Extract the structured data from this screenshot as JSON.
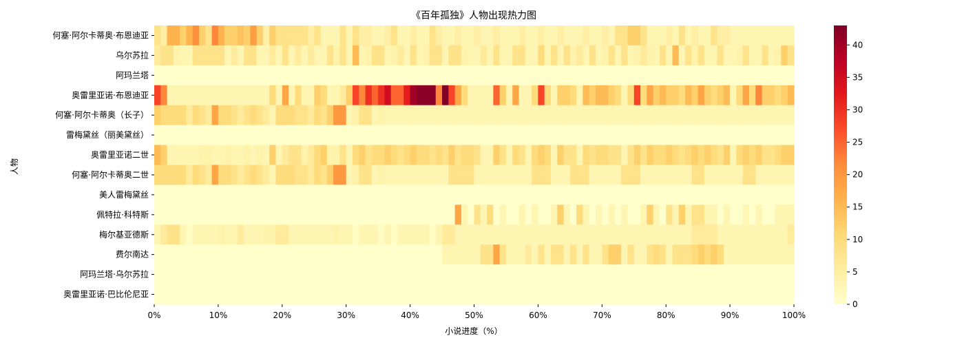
{
  "chart_data": {
    "type": "heatmap",
    "title": "《百年孤独》人物出现热力图",
    "xlabel": "小说进度（%）",
    "ylabel": "人物",
    "x_ticks": [
      "0%",
      "10%",
      "20%",
      "30%",
      "40%",
      "50%",
      "60%",
      "70%",
      "80%",
      "90%",
      "100%"
    ],
    "rows": [
      "何塞·阿尔卡蒂奥·布恩迪亚",
      "乌尔苏拉",
      "阿玛兰塔",
      "奥雷里亚诺·布恩迪亚",
      "何塞·阿尔卡蒂奥（长子）",
      "雷梅黛丝（丽美黛丝）",
      "奥雷里亚诺二世",
      "何塞·阿尔卡蒂奥二世",
      "美人雷梅黛丝",
      "佩特拉·科特斯",
      "梅尔基亚德斯",
      "费尔南达",
      "阿玛兰塔·乌尔苏拉",
      "奥雷里亚诺·巴比伦尼亚"
    ],
    "colorbar": {
      "min": 0,
      "max": 43,
      "ticks": [
        0,
        5,
        10,
        15,
        20,
        25,
        30,
        35,
        40
      ]
    },
    "bins": 100,
    "values": [
      [
        8,
        5,
        16,
        16,
        12,
        16,
        21,
        12,
        8,
        22,
        16,
        12,
        12,
        14,
        12,
        19,
        12,
        5,
        12,
        8,
        8,
        8,
        8,
        8,
        5,
        8,
        3,
        3,
        3,
        8,
        3,
        8,
        5,
        5,
        3,
        3,
        5,
        8,
        3,
        3,
        5,
        3,
        3,
        8,
        5,
        3,
        3,
        5,
        3,
        3,
        5,
        3,
        3,
        5,
        3,
        3,
        3,
        5,
        3,
        3,
        5,
        3,
        3,
        5,
        3,
        3,
        3,
        5,
        3,
        3,
        5,
        3,
        8,
        8,
        12,
        12,
        8,
        3,
        3,
        3,
        5,
        3,
        8,
        3,
        5,
        3,
        3,
        8,
        5,
        5,
        3,
        3,
        3,
        3,
        3,
        3,
        3,
        3,
        3,
        3
      ],
      [
        6,
        8,
        8,
        4,
        3,
        3,
        8,
        8,
        8,
        8,
        8,
        3,
        6,
        3,
        8,
        8,
        3,
        3,
        6,
        3,
        8,
        3,
        6,
        3,
        6,
        3,
        3,
        8,
        4,
        8,
        3,
        15,
        3,
        4,
        8,
        8,
        3,
        4,
        6,
        3,
        8,
        3,
        4,
        8,
        8,
        3,
        8,
        8,
        4,
        3,
        3,
        6,
        3,
        8,
        3,
        3,
        8,
        8,
        3,
        3,
        10,
        3,
        8,
        3,
        8,
        4,
        6,
        3,
        8,
        3,
        4,
        8,
        3,
        8,
        3,
        4,
        6,
        4,
        3,
        8,
        3,
        15,
        3,
        8,
        4,
        8,
        3,
        3,
        8,
        3,
        3,
        4,
        8,
        3,
        3,
        8,
        3,
        4,
        12,
        8
      ],
      [
        0,
        0,
        0,
        0,
        0,
        0,
        0,
        0,
        0,
        0,
        0,
        0,
        0,
        0,
        0,
        0,
        0,
        0,
        0,
        0,
        0,
        0,
        0,
        0,
        0,
        0,
        0,
        0,
        0,
        0,
        0,
        0,
        0,
        0,
        0,
        0,
        0,
        0,
        0,
        0,
        0,
        0,
        0,
        0,
        0,
        0,
        0,
        0,
        0,
        0,
        0,
        0,
        0,
        0,
        0,
        0,
        0,
        0,
        0,
        0,
        0,
        0,
        0,
        0,
        0,
        0,
        0,
        0,
        0,
        0,
        0,
        0,
        0,
        0,
        0,
        0,
        0,
        0,
        0,
        0,
        0,
        0,
        0,
        0,
        0,
        0,
        0,
        0,
        0,
        0,
        0,
        0,
        0,
        0,
        0,
        0,
        0,
        0,
        0,
        0
      ],
      [
        28,
        22,
        3,
        3,
        3,
        3,
        3,
        3,
        3,
        3,
        3,
        3,
        3,
        3,
        3,
        3,
        3,
        3,
        10,
        3,
        18,
        3,
        10,
        3,
        3,
        12,
        10,
        3,
        3,
        6,
        12,
        28,
        22,
        30,
        25,
        30,
        35,
        25,
        25,
        32,
        40,
        42,
        42,
        42,
        22,
        43,
        28,
        18,
        10,
        3,
        3,
        3,
        3,
        25,
        12,
        3,
        18,
        3,
        3,
        10,
        28,
        10,
        3,
        12,
        12,
        10,
        3,
        15,
        12,
        15,
        15,
        12,
        10,
        3,
        10,
        28,
        10,
        18,
        12,
        15,
        12,
        12,
        10,
        15,
        12,
        18,
        12,
        10,
        12,
        15,
        3,
        10,
        18,
        10,
        22,
        12,
        12,
        10,
        12,
        15
      ],
      [
        12,
        10,
        10,
        10,
        10,
        6,
        10,
        8,
        6,
        18,
        10,
        10,
        8,
        6,
        8,
        10,
        8,
        6,
        3,
        10,
        10,
        10,
        8,
        8,
        6,
        10,
        8,
        12,
        20,
        20,
        3,
        4,
        8,
        8,
        3,
        4,
        3,
        3,
        3,
        3,
        3,
        3,
        3,
        3,
        3,
        3,
        3,
        3,
        3,
        3,
        3,
        3,
        3,
        3,
        3,
        3,
        3,
        3,
        3,
        3,
        3,
        3,
        3,
        3,
        3,
        3,
        3,
        3,
        3,
        3,
        3,
        3,
        3,
        3,
        3,
        3,
        3,
        3,
        3,
        3,
        3,
        3,
        3,
        3,
        3,
        3,
        3,
        3,
        3,
        3,
        3,
        3,
        3,
        3,
        3,
        3,
        3,
        3,
        3,
        3
      ],
      [
        0,
        0,
        0,
        0,
        0,
        0,
        0,
        0,
        0,
        0,
        0,
        0,
        0,
        0,
        0,
        0,
        0,
        0,
        0,
        0,
        0,
        0,
        0,
        0,
        0,
        0,
        0,
        0,
        0,
        0,
        0,
        0,
        0,
        0,
        0,
        0,
        0,
        0,
        0,
        0,
        0,
        0,
        0,
        0,
        0,
        0,
        0,
        0,
        0,
        0,
        0,
        0,
        0,
        0,
        0,
        0,
        0,
        0,
        0,
        0,
        0,
        0,
        0,
        0,
        0,
        0,
        0,
        0,
        0,
        0,
        0,
        0,
        0,
        0,
        0,
        0,
        0,
        0,
        0,
        0,
        0,
        0,
        0,
        0,
        0,
        0,
        0,
        0,
        0,
        0,
        0,
        0,
        0,
        0,
        0,
        0,
        0,
        0,
        0,
        0
      ],
      [
        15,
        12,
        3,
        3,
        3,
        3,
        3,
        4,
        4,
        3,
        3,
        4,
        3,
        3,
        4,
        3,
        4,
        3,
        12,
        3,
        6,
        8,
        8,
        4,
        6,
        10,
        12,
        4,
        4,
        8,
        3,
        10,
        12,
        8,
        10,
        10,
        12,
        10,
        8,
        10,
        12,
        10,
        10,
        8,
        10,
        8,
        12,
        8,
        10,
        10,
        8,
        3,
        3,
        12,
        8,
        3,
        10,
        8,
        3,
        10,
        12,
        10,
        3,
        12,
        8,
        8,
        3,
        10,
        8,
        10,
        10,
        8,
        8,
        3,
        8,
        12,
        8,
        12,
        10,
        10,
        12,
        10,
        8,
        10,
        12,
        10,
        12,
        10,
        8,
        12,
        3,
        10,
        12,
        10,
        12,
        8,
        8,
        10,
        12,
        12
      ],
      [
        10,
        10,
        10,
        10,
        10,
        6,
        10,
        8,
        6,
        18,
        10,
        10,
        8,
        6,
        8,
        10,
        8,
        6,
        3,
        10,
        10,
        10,
        8,
        8,
        6,
        10,
        8,
        12,
        20,
        20,
        3,
        4,
        8,
        8,
        3,
        4,
        3,
        3,
        3,
        3,
        3,
        3,
        3,
        3,
        3,
        3,
        8,
        8,
        8,
        8,
        3,
        3,
        3,
        3,
        3,
        3,
        3,
        3,
        3,
        8,
        8,
        8,
        3,
        3,
        3,
        8,
        8,
        8,
        3,
        3,
        3,
        3,
        3,
        8,
        8,
        8,
        3,
        3,
        3,
        3,
        3,
        3,
        3,
        3,
        8,
        8,
        3,
        3,
        3,
        3,
        3,
        3,
        8,
        8,
        3,
        3,
        3,
        3,
        3,
        3
      ],
      [
        0,
        0,
        0,
        0,
        0,
        0,
        0,
        0,
        0,
        0,
        0,
        0,
        0,
        0,
        0,
        0,
        0,
        0,
        0,
        0,
        0,
        0,
        0,
        0,
        0,
        0,
        0,
        0,
        0,
        0,
        0,
        0,
        0,
        0,
        0,
        0,
        0,
        0,
        0,
        0,
        0,
        0,
        0,
        0,
        0,
        0,
        0,
        0,
        0,
        0,
        0,
        0,
        0,
        0,
        0,
        0,
        0,
        0,
        0,
        0,
        0,
        0,
        0,
        0,
        0,
        0,
        0,
        0,
        0,
        0,
        0,
        0,
        0,
        0,
        0,
        0,
        0,
        0,
        0,
        0,
        0,
        0,
        0,
        0,
        0,
        0,
        0,
        0,
        0,
        0,
        0,
        0,
        0,
        0,
        0,
        0,
        0,
        0,
        0,
        0
      ],
      [
        0,
        0,
        0,
        0,
        0,
        0,
        0,
        0,
        0,
        0,
        0,
        0,
        0,
        0,
        0,
        0,
        0,
        0,
        0,
        0,
        0,
        0,
        0,
        0,
        0,
        0,
        0,
        0,
        0,
        0,
        0,
        0,
        0,
        0,
        0,
        0,
        0,
        0,
        0,
        0,
        0,
        0,
        0,
        0,
        0,
        0,
        0,
        18,
        3,
        0,
        8,
        3,
        10,
        0,
        3,
        0,
        0,
        3,
        0,
        3,
        0,
        0,
        3,
        12,
        3,
        0,
        10,
        3,
        0,
        3,
        0,
        3,
        0,
        3,
        0,
        0,
        3,
        12,
        3,
        0,
        8,
        3,
        12,
        3,
        8,
        8,
        3,
        3,
        0,
        3,
        0,
        0,
        3,
        0,
        3,
        0,
        0,
        3,
        3,
        3
      ],
      [
        3,
        6,
        8,
        8,
        3,
        1,
        3,
        3,
        3,
        3,
        4,
        3,
        3,
        6,
        3,
        3,
        3,
        4,
        4,
        6,
        6,
        3,
        3,
        3,
        3,
        3,
        3,
        3,
        4,
        3,
        3,
        1,
        3,
        3,
        3,
        1,
        3,
        1,
        3,
        3,
        3,
        3,
        3,
        1,
        3,
        6,
        6,
        3,
        3,
        3,
        3,
        3,
        3,
        3,
        3,
        3,
        3,
        3,
        3,
        3,
        3,
        3,
        3,
        3,
        3,
        3,
        3,
        3,
        3,
        3,
        3,
        3,
        3,
        3,
        3,
        3,
        3,
        3,
        3,
        3,
        3,
        3,
        3,
        3,
        6,
        6,
        6,
        6,
        3,
        3,
        3,
        3,
        3,
        3,
        3,
        3,
        3,
        3,
        3,
        6
      ],
      [
        0,
        0,
        0,
        0,
        0,
        0,
        0,
        0,
        0,
        0,
        0,
        0,
        0,
        0,
        0,
        0,
        0,
        0,
        0,
        0,
        0,
        0,
        0,
        0,
        0,
        0,
        0,
        0,
        0,
        0,
        0,
        0,
        0,
        0,
        0,
        0,
        0,
        0,
        0,
        0,
        0,
        0,
        0,
        0,
        0,
        3,
        3,
        3,
        3,
        3,
        3,
        8,
        8,
        18,
        8,
        3,
        3,
        3,
        6,
        3,
        8,
        3,
        8,
        8,
        3,
        8,
        3,
        8,
        3,
        3,
        8,
        12,
        12,
        3,
        8,
        3,
        3,
        8,
        10,
        8,
        3,
        8,
        8,
        8,
        10,
        12,
        10,
        12,
        10,
        3,
        3,
        3,
        3,
        3,
        3,
        3,
        3,
        3,
        3,
        3
      ],
      [
        0,
        0,
        0,
        0,
        0,
        0,
        0,
        0,
        0,
        0,
        0,
        0,
        0,
        0,
        0,
        0,
        0,
        0,
        0,
        0,
        0,
        0,
        0,
        0,
        0,
        0,
        0,
        0,
        0,
        0,
        0,
        0,
        0,
        0,
        0,
        0,
        0,
        0,
        0,
        0,
        0,
        0,
        0,
        0,
        0,
        0,
        0,
        0,
        0,
        0,
        0,
        0,
        0,
        0,
        0,
        0,
        0,
        0,
        0,
        0,
        0,
        0,
        0,
        0,
        0,
        0,
        0,
        0,
        0,
        0,
        0,
        0,
        0,
        0,
        0,
        0,
        0,
        0,
        0,
        0,
        0,
        0,
        0,
        0,
        0,
        0,
        0,
        0,
        0,
        0,
        0,
        0,
        0,
        0,
        0,
        0,
        0,
        0,
        0,
        0
      ],
      [
        0,
        0,
        0,
        0,
        0,
        0,
        0,
        0,
        0,
        0,
        0,
        0,
        0,
        0,
        0,
        0,
        0,
        0,
        0,
        0,
        0,
        0,
        0,
        0,
        0,
        0,
        0,
        0,
        0,
        0,
        0,
        0,
        0,
        0,
        0,
        0,
        0,
        0,
        0,
        0,
        0,
        0,
        0,
        0,
        0,
        0,
        0,
        0,
        0,
        0,
        0,
        0,
        0,
        0,
        0,
        0,
        0,
        0,
        0,
        0,
        0,
        0,
        0,
        0,
        0,
        0,
        0,
        0,
        0,
        0,
        0,
        0,
        0,
        0,
        0,
        0,
        0,
        0,
        0,
        0,
        0,
        0,
        0,
        0,
        0,
        0,
        0,
        0,
        0,
        0,
        0,
        0,
        0,
        0,
        0,
        0,
        0,
        0,
        0,
        0
      ]
    ]
  }
}
